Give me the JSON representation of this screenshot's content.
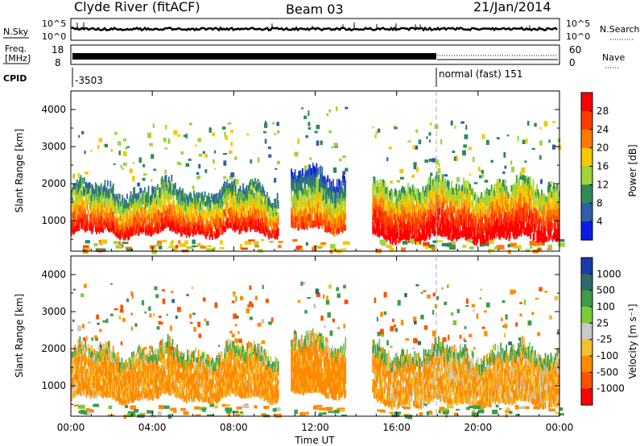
{
  "header": {
    "station": "Clyde River (fitACF)",
    "beam": "Beam 03",
    "date": "21/Jan/2014"
  },
  "panels_top": {
    "nsky_label": "N.Sky",
    "nsky_ticks": [
      "10^5",
      "10^0"
    ],
    "nsearch_label": "N.Search",
    "nsearch_ticks": [
      "10^5",
      "10^0"
    ],
    "freq_label": "Freq.",
    "freq_unit": "[MHz]",
    "freq_ticks": [
      "18",
      "8"
    ],
    "nave_label": "Nave",
    "nave_ticks": [
      "60",
      "0"
    ],
    "cpid_label": "CPID",
    "cpid_left": "-3503",
    "cpid_right": "normal (fast) 151"
  },
  "colorbars": {
    "power": {
      "label": "Power [dB]",
      "ticks": [
        "28",
        "24",
        "20",
        "16",
        "12",
        "8",
        "4"
      ],
      "colors": [
        "#ff0000",
        "#ff3a00",
        "#ff7a00",
        "#f5c800",
        "#9fd43a",
        "#2f8a55",
        "#2f5fa8",
        "#0a1de8"
      ]
    },
    "velocity": {
      "label": "Velocity [m s⁻¹]",
      "ticks": [
        "1000",
        "500",
        "100",
        "25",
        "-25",
        "-100",
        "-500",
        "-1000"
      ],
      "colors": [
        "#1c3aa8",
        "#2f6a6a",
        "#3f9a4a",
        "#7acb3a",
        "#c8c8c8",
        "#f0c030",
        "#ff8a00",
        "#ff5000",
        "#ff0000"
      ]
    }
  },
  "chart_data": {
    "type": "heatmap",
    "ylabel": "Slant Range [km]",
    "xlabel": "Time UT",
    "x_ticks": [
      "00:00",
      "04:00",
      "08:00",
      "12:00",
      "16:00",
      "20:00",
      "00:00"
    ],
    "y_ticks": [
      "1000",
      "2000",
      "3000",
      "4000"
    ],
    "ylim": [
      180,
      4500
    ],
    "xlim_hours": [
      0,
      24
    ],
    "mode_change_hour": 18.0,
    "power_panel": {
      "echo_bands": [
        {
          "t0": 0.0,
          "t1": 10.2,
          "r0": 600,
          "r1": 1700,
          "value_db": 22
        },
        {
          "t0": 10.8,
          "t1": 13.5,
          "r0": 700,
          "r1": 2100,
          "value_db": 18
        },
        {
          "t0": 14.8,
          "t1": 24.0,
          "r0": 450,
          "r1": 1800,
          "value_db": 26
        }
      ]
    },
    "velocity_panel": {
      "echo_bands": [
        {
          "t0": 0.0,
          "t1": 10.2,
          "r0": 600,
          "r1": 1800,
          "value_ms": -150
        },
        {
          "t0": 10.8,
          "t1": 13.5,
          "r0": 700,
          "r1": 2100,
          "value_ms": -200
        },
        {
          "t0": 14.8,
          "t1": 24.0,
          "r0": 450,
          "r1": 1800,
          "value_ms": -120
        }
      ]
    }
  }
}
